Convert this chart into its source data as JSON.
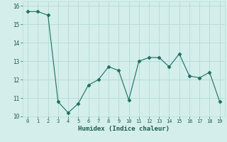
{
  "x": [
    0,
    1,
    2,
    3,
    4,
    5,
    6,
    7,
    8,
    9,
    10,
    11,
    12,
    13,
    14,
    15,
    16,
    17,
    18,
    19
  ],
  "y": [
    15.7,
    15.7,
    15.5,
    10.8,
    10.2,
    10.7,
    11.7,
    12.0,
    12.7,
    12.5,
    10.9,
    13.0,
    13.2,
    13.2,
    12.7,
    13.4,
    12.2,
    12.1,
    12.4,
    10.8
  ],
  "xlabel": "Humidex (Indice chaleur)",
  "xlim": [
    -0.5,
    19.5
  ],
  "ylim": [
    10.0,
    16.25
  ],
  "yticks": [
    10,
    11,
    12,
    13,
    14,
    15,
    16
  ],
  "xticks": [
    0,
    1,
    2,
    3,
    4,
    5,
    6,
    7,
    8,
    9,
    10,
    11,
    12,
    13,
    14,
    15,
    16,
    17,
    18,
    19
  ],
  "line_color": "#1a7060",
  "marker": "D",
  "marker_size": 2.5,
  "bg_color": "#d4eeeb",
  "grid_color": "#b8ddd9",
  "tick_color": "#1a5c4a",
  "label_color": "#1a5c4a"
}
